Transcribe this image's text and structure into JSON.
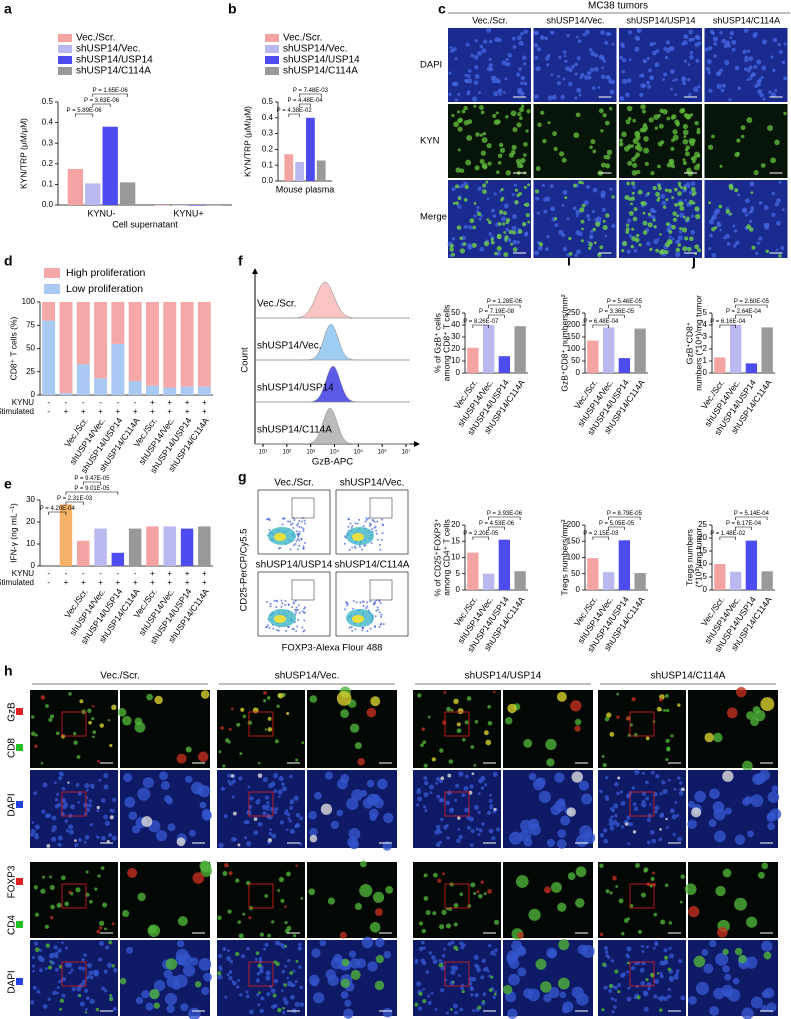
{
  "a": {
    "letter": "a",
    "type": "bar",
    "categories": [
      "KYNU-",
      "KYNU+"
    ],
    "xlabel": "Cell supernatant",
    "ylabel": [
      "KYN/TRP (μM/μM)"
    ],
    "ylim": [
      0,
      0.5
    ],
    "yticks": [
      {
        "value": 0,
        "label": "0.0"
      },
      {
        "value": 0.1,
        "label": "0.1"
      },
      {
        "value": 0.2,
        "label": "0.2"
      },
      {
        "value": 0.3,
        "label": "0.3"
      },
      {
        "value": 0.4,
        "label": "0.4"
      },
      {
        "value": 0.5,
        "label": "0.5"
      }
    ],
    "series": [
      {
        "name": "Vec./Scr.",
        "color": "#f4a3a3",
        "values": [
          0.175,
          0
        ]
      },
      {
        "name": "shUSP14/Vec.",
        "color": "#b9b9f0",
        "values": [
          0.105,
          0
        ]
      },
      {
        "name": "shUSP14/USP14",
        "color": "#4c4cf0",
        "values": [
          0.38,
          0
        ]
      },
      {
        "name": "shUSP14/C114A",
        "color": "#999999",
        "values": [
          0.11,
          0
        ]
      }
    ],
    "pvalues": [
      "P = 5.89E-06",
      "P = 3.63E-06",
      "P = 1.65E-06"
    ]
  },
  "b": {
    "letter": "b",
    "type": "bar",
    "categories": [
      "Mouse plasma"
    ],
    "ylabel": [
      "KYN/TRP (μM/μM)"
    ],
    "ylim": [
      0,
      0.5
    ],
    "yticks": [
      {
        "value": 0,
        "label": "0.0"
      },
      {
        "value": 0.1,
        "label": "0.1"
      },
      {
        "value": 0.2,
        "label": "0.2"
      },
      {
        "value": 0.3,
        "label": "0.3"
      },
      {
        "value": 0.4,
        "label": "0.4"
      },
      {
        "value": 0.5,
        "label": "0.5"
      }
    ],
    "series": [
      {
        "name": "Vec./Scr.",
        "color": "#f4a3a3",
        "values": [
          0.17
        ]
      },
      {
        "name": "shUSP14/Vec.",
        "color": "#b9b9f0",
        "values": [
          0.12
        ]
      },
      {
        "name": "shUSP14/USP14",
        "color": "#4c4cf0",
        "values": [
          0.4
        ]
      },
      {
        "name": "shUSP14/C114A",
        "color": "#999999",
        "values": [
          0.13
        ]
      }
    ],
    "pvalues": [
      "P = 4.38E-02",
      "P = 4.48E-04",
      "P = 7.48E-03"
    ]
  },
  "c": {
    "letter": "c",
    "title": "MC38 tumors",
    "columns": [
      "Vec./Scr.",
      "shUSP14/Vec.",
      "shUSP14/USP14",
      "shUSP14/C114A"
    ],
    "rows": [
      "DAPI",
      "KYN",
      "Merge"
    ]
  },
  "d": {
    "letter": "d",
    "type": "stacked_bar",
    "categories": [
      null,
      null,
      "Vec./Scr.",
      "shUSP14/Vec.",
      "shUSP14/USP14",
      "shUSP14/C114A",
      "Vec./Scr.",
      "shUSP14/Vec.",
      "shUSP14/USP14",
      "shUSP14/C114A"
    ],
    "ylabel": [
      "CD8⁺ T cells (%)"
    ],
    "ylim": [
      0,
      100
    ],
    "yticks": [
      0,
      25,
      50,
      75,
      100
    ],
    "series": [
      {
        "name": "High proliferation",
        "color": "#f5a8a8",
        "values": [
          20,
          98,
          67,
          82,
          45,
          85,
          90,
          92,
          91,
          91
        ]
      },
      {
        "name": "Low proliferation",
        "color": "#a9c9f2",
        "values": [
          80,
          2,
          33,
          18,
          55,
          15,
          10,
          8,
          9,
          9
        ]
      }
    ],
    "row_labels": [
      "KYNU",
      "Stimulated"
    ],
    "kynu": [
      "-",
      "-",
      "-",
      "-",
      "-",
      "-",
      "+",
      "+",
      "+",
      "+"
    ],
    "stimulated": [
      "-",
      "+",
      "+",
      "+",
      "+",
      "+",
      "+",
      "+",
      "+",
      "+"
    ]
  },
  "e": {
    "letter": "e",
    "type": "bar",
    "categories": [
      null,
      null,
      "Vec./Scr.",
      "shUSP14/Vec.",
      "shUSP14/USP14",
      "shUSP14/C114A",
      "Vec./Scr.",
      "shUSP14/Vec.",
      "shUSP14/USP14",
      "shUSP14/C114A"
    ],
    "values": [
      0.5,
      28,
      11.5,
      17,
      6,
      17,
      18,
      18,
      17,
      18
    ],
    "colors": [
      "#aaaaaa",
      "#f7b26a",
      "#f4a3a3",
      "#b9b9f0",
      "#4c4cf0",
      "#999999",
      "#f4a3a3",
      "#b9b9f0",
      "#4c4cf0",
      "#999999"
    ],
    "ylabel": [
      "IFN-γ (ng mL⁻¹)"
    ],
    "ylim": [
      0,
      30
    ],
    "yticks": [
      0,
      10,
      20,
      30
    ],
    "pvalues": [
      "P = 4.20E-04",
      "P = 2.31E-03",
      "P = 9.01E-05",
      "P = 9.47E-05"
    ],
    "row_labels": [
      "KYNU",
      "Stimulated"
    ],
    "kynu": [
      "-",
      "-",
      "-",
      "-",
      "-",
      "-",
      "+",
      "+",
      "+",
      "+"
    ],
    "stimulated": [
      "-",
      "+",
      "+",
      "+",
      "+",
      "+",
      "+",
      "+",
      "+",
      "+"
    ]
  },
  "f": {
    "letter": "f",
    "samples": [
      "Vec./Scr.",
      "shUSP14/Vec.",
      "shUSP14/USP14",
      "shUSP14/C114A"
    ],
    "colors": [
      "#f8c4c4",
      "#9fcdf2",
      "#5a5ae6",
      "#bbbbbb"
    ],
    "xlabel": "GzB-APC",
    "ylabel": "Count",
    "xtick_labels": [
      "10¹",
      "10²",
      "10³",
      "10⁴",
      "10⁵",
      "10⁶",
      "10⁷"
    ]
  },
  "f_bar": {
    "type": "bar",
    "categories": [
      "Vec./Scr.",
      "shUSP14/Vec.",
      "shUSP14/USP14",
      "shUSP14/C114A"
    ],
    "values": [
      21,
      40,
      14,
      39
    ],
    "colors": [
      "#f4a3a3",
      "#b9b9f0",
      "#4c4cf0",
      "#999999"
    ],
    "ylabel": [
      "% of GzB⁺ cells",
      "among CD8⁺ T cells"
    ],
    "ylim": [
      0,
      50
    ],
    "yticks": [
      0,
      10,
      20,
      30,
      40,
      50
    ],
    "pvalues": [
      "P = 8.26E-07",
      "P = 7.19E-08",
      "P = 1.28E-06"
    ]
  },
  "i": {
    "letter": "i",
    "type": "bar",
    "categories": [
      "Vec./Scr.",
      "shUSP14/Vec.",
      "shUSP14/USP14",
      "shUSP14/C114A"
    ],
    "values": [
      135,
      190,
      62,
      185
    ],
    "colors": [
      "#f4a3a3",
      "#b9b9f0",
      "#4c4cf0",
      "#999999"
    ],
    "ylabel": [
      "GzB⁺CD8⁺ numbers/mm²"
    ],
    "ylim": [
      0,
      250
    ],
    "yticks": [
      0,
      50,
      100,
      150,
      200,
      250
    ],
    "pvalues": [
      "P = 6.48E-04",
      "P = 3.36E-05",
      "P = 5.46E-05"
    ]
  },
  "j": {
    "letter": "j",
    "type": "bar",
    "categories": [
      "Vec./Scr.",
      "shUSP14/Vec.",
      "shUSP14/USP14",
      "shUSP14/C114A"
    ],
    "values": [
      1.3,
      4.0,
      0.8,
      3.8
    ],
    "colors": [
      "#f4a3a3",
      "#b9b9f0",
      "#4c4cf0",
      "#999999"
    ],
    "ylabel": [
      "GzB⁺CD8⁺",
      "numbers (*10⁴)/mg tumor"
    ],
    "ylim": [
      0,
      5
    ],
    "yticks": [
      0,
      1,
      2,
      3,
      4,
      5
    ],
    "pvalues": [
      "P = 6.16E-04",
      "P = 2.64E-04",
      "P = 2.60E-05"
    ]
  },
  "g": {
    "letter": "g",
    "plots": [
      "Vec./Scr.",
      "shUSP14/Vec.",
      "shUSP14/USP14",
      "shUSP14/C114A"
    ],
    "xlabel": "FOXP3-Alexa Flour 488",
    "ylabel": "CD25-PerCP/Cy5.5"
  },
  "g_bar": {
    "type": "bar",
    "categories": [
      "Vec./Scr.",
      "shUSP14/Vec.",
      "shUSP14/USP14",
      "shUSP14/C114A"
    ],
    "values": [
      11.5,
      5,
      15.5,
      5.8
    ],
    "colors": [
      "#f4a3a3",
      "#b9b9f0",
      "#4c4cf0",
      "#999999"
    ],
    "ylabel": [
      "% of CD25⁺FOXP3⁺",
      "among CD4⁺ T cells"
    ],
    "ylim": [
      0,
      20
    ],
    "yticks": [
      0,
      5,
      10,
      15,
      20
    ],
    "pvalues": [
      "P = 2.20E-05",
      "P = 4.53E-06",
      "P = 3.93E-06"
    ]
  },
  "i_lower": {
    "type": "bar",
    "categories": [
      "Vec./Scr.",
      "shUSP14/Vec.",
      "shUSP14/USP14",
      "shUSP14/C114A"
    ],
    "values": [
      98,
      55,
      153,
      52
    ],
    "colors": [
      "#f4a3a3",
      "#b9b9f0",
      "#4c4cf0",
      "#999999"
    ],
    "ylabel": [
      "Tregs numbers/mm²"
    ],
    "ylim": [
      0,
      200
    ],
    "yticks": [
      0,
      50,
      100,
      150,
      200
    ],
    "pvalues": [
      "P = 2.15E-03",
      "P = 5.05E-05",
      "P = 8.79E-05"
    ]
  },
  "j_lower": {
    "type": "bar",
    "categories": [
      "Vec./Scr.",
      "shUSP14/Vec.",
      "shUSP14/USP14",
      "shUSP14/C114A"
    ],
    "values": [
      10,
      7,
      19,
      7.2
    ],
    "colors": [
      "#f4a3a3",
      "#b9b9f0",
      "#4c4cf0",
      "#999999"
    ],
    "ylabel": [
      "Tregs numbers",
      "(*10³)/mg tumor"
    ],
    "ylim": [
      0,
      25
    ],
    "yticks": [
      0,
      5,
      10,
      15,
      20,
      25
    ],
    "pvalues": [
      "P = 1.48E-02",
      "P = 6.17E-04",
      "P = 5.14E-04"
    ]
  },
  "h": {
    "letter": "h",
    "groups": [
      "Vec./Scr.",
      "shUSP14/Vec.",
      "shUSP14/USP14",
      "shUSP14/C114A"
    ],
    "channels_top": [
      "GzB",
      "CD8",
      "DAPI"
    ],
    "channels_bottom": [
      "FOXP3",
      "CD4",
      "DAPI"
    ]
  }
}
